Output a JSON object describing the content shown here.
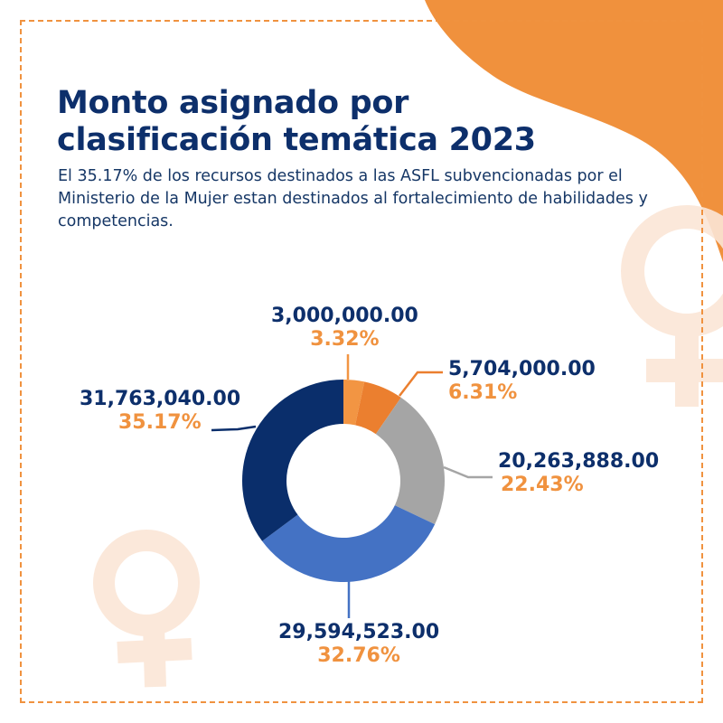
{
  "title": "Monto asignado por clasificación temática 2023",
  "title_lines": [
    "Monto asignado por",
    "clasificación temática 2023"
  ],
  "subtitle": "El 35.17% de los recursos destinados a las ASFL subvencionadas por el Ministerio de la Mujer estan destinados al fortalecimiento de habilidades y competencias.",
  "colors": {
    "title": "#0D2F6B",
    "accent": "#F0923F",
    "border": "#F0923F"
  },
  "decorations": [
    "venus-symbol-icon",
    "venus-symbol-icon",
    "orange-blob"
  ],
  "chart_data": {
    "type": "pie",
    "variant": "donut",
    "title": "",
    "legend": "none",
    "slices": [
      {
        "value": 3000000.0,
        "value_label": "3,000,000.00",
        "percent": 3.32,
        "percent_label": "3.32%",
        "color": "#F29543"
      },
      {
        "value": 5704000.0,
        "value_label": "5,704,000.00",
        "percent": 6.31,
        "percent_label": "6.31%",
        "color": "#EB7F2F"
      },
      {
        "value": 20263888.0,
        "value_label": "20,263,888.00",
        "percent": 22.43,
        "percent_label": "22.43%",
        "color": "#A5A5A5"
      },
      {
        "value": 29594523.0,
        "value_label": "29,594,523.00",
        "percent": 32.76,
        "percent_label": "32.76%",
        "color": "#4472C4"
      },
      {
        "value": 31763040.0,
        "value_label": "31,763,040.00",
        "percent": 35.17,
        "percent_label": "35.17%",
        "color": "#0A2E6B"
      }
    ]
  }
}
